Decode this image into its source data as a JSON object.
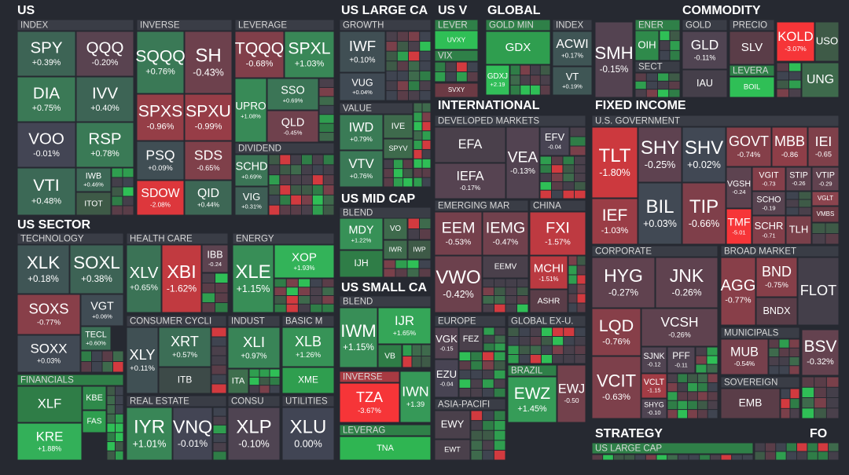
{
  "sections": [
    {
      "title": "US"
    },
    {
      "title": "US SECTOR"
    },
    {
      "title": "US LARGE CA"
    },
    {
      "title": "US MID CAP"
    },
    {
      "title": "US SMALL CA"
    },
    {
      "title": "US V"
    },
    {
      "title": "GLOBAL"
    },
    {
      "title": "COMMODITY"
    },
    {
      "title": "INTERNATIONAL"
    },
    {
      "title": "FIXED INCOME"
    },
    {
      "title": "STRATEGY"
    },
    {
      "title": "FO"
    }
  ],
  "groups": [
    {
      "label": "INDEX"
    },
    {
      "label": "INVERSE"
    },
    {
      "label": "LEVERAGE"
    },
    {
      "label": "DIVIDEND"
    },
    {
      "label": "TECHNOLOGY"
    },
    {
      "label": "HEALTH CARE"
    },
    {
      "label": "ENERGY"
    },
    {
      "label": "CONSUMER CYCLI"
    },
    {
      "label": "INDUST"
    },
    {
      "label": "BASIC M"
    },
    {
      "label": "FINANCIALS"
    },
    {
      "label": "REAL ESTATE"
    },
    {
      "label": "CONSU"
    },
    {
      "label": "UTILITIES"
    },
    {
      "label": "GROWTH"
    },
    {
      "label": "VALUE"
    },
    {
      "label": "BLEND"
    },
    {
      "label": "BLEND"
    },
    {
      "label": "INVERSE"
    },
    {
      "label": "LEVERAG"
    },
    {
      "label": "LEVER"
    },
    {
      "label": "VIX"
    },
    {
      "label": "GOLD MIN"
    },
    {
      "label": "INDEX"
    },
    {
      "label": "ENER"
    },
    {
      "label": "SECT"
    },
    {
      "label": "GOLD"
    },
    {
      "label": "PRECIO"
    },
    {
      "label": "LEVERA"
    },
    {
      "label": "DEVELOPED MARKETS"
    },
    {
      "label": "EMERGING MAR"
    },
    {
      "label": "CHINA"
    },
    {
      "label": "EUROPE"
    },
    {
      "label": "GLOBAL EX-U."
    },
    {
      "label": "BRAZIL"
    },
    {
      "label": "ASIA-PACIFI"
    },
    {
      "label": "U.S. GOVERNMENT"
    },
    {
      "label": "CORPORATE"
    },
    {
      "label": "BROAD MARKET"
    },
    {
      "label": "MUNICIPALS"
    },
    {
      "label": "SOVEREIGN"
    },
    {
      "label": "US LARGE CAP"
    }
  ],
  "tiles": [
    {
      "ticker": "SPY",
      "change": "+0.39%"
    },
    {
      "ticker": "QQQ",
      "change": "-0.20%"
    },
    {
      "ticker": "DIA",
      "change": "+0.75%"
    },
    {
      "ticker": "IVV",
      "change": "+0.40%"
    },
    {
      "ticker": "VOO",
      "change": "-0.01%"
    },
    {
      "ticker": "RSP",
      "change": "+0.78%"
    },
    {
      "ticker": "VTI",
      "change": "+0.48%"
    },
    {
      "ticker": "IWB",
      "change": "+0.46%"
    },
    {
      "ticker": "ITOT",
      "color": "#3e5a47"
    },
    {
      "ticker": "SQQQ",
      "change": "+0.76%"
    },
    {
      "ticker": "SH",
      "change": "-0.43%"
    },
    {
      "ticker": "SPXS",
      "change": "-0.96%"
    },
    {
      "ticker": "SPXU",
      "change": "-0.99%"
    },
    {
      "ticker": "PSQ",
      "change": "+0.09%"
    },
    {
      "ticker": "SDS",
      "change": "-0.65%"
    },
    {
      "ticker": "SDOW",
      "change": "-2.08%"
    },
    {
      "ticker": "QID",
      "change": "+0.44%"
    },
    {
      "ticker": "TQQQ",
      "change": "-0.68%"
    },
    {
      "ticker": "SPXL",
      "change": "+1.03%"
    },
    {
      "ticker": "UPRO",
      "change": "+1.08%"
    },
    {
      "ticker": "SSO",
      "change": "+0.69%"
    },
    {
      "ticker": "QLD",
      "change": "-0.45%"
    },
    {
      "ticker": "SCHD",
      "change": "+0.69%"
    },
    {
      "ticker": "VIG",
      "change": "+0.31%"
    },
    {
      "ticker": "XLK",
      "change": "+0.18%"
    },
    {
      "ticker": "SOXL",
      "change": "+0.38%"
    },
    {
      "ticker": "SOXS",
      "change": "-0.77%"
    },
    {
      "ticker": "VGT",
      "change": "+0.06%"
    },
    {
      "ticker": "TECL",
      "change": "+0.60%"
    },
    {
      "ticker": "SOXX",
      "change": "+0.03%"
    },
    {
      "ticker": "XLV",
      "change": "+0.65%"
    },
    {
      "ticker": "XBI",
      "change": "-1.62%"
    },
    {
      "ticker": "IBB",
      "change": "-0.24"
    },
    {
      "ticker": "XLE",
      "change": "+1.15%"
    },
    {
      "ticker": "XOP",
      "change": "+1.93%"
    },
    {
      "ticker": "XLY",
      "change": "+0.11%"
    },
    {
      "ticker": "XRT",
      "change": "+0.57%"
    },
    {
      "ticker": "ITB",
      "color": "#3d4a48"
    },
    {
      "ticker": "XLI",
      "change": "+0.97%"
    },
    {
      "ticker": "ITA",
      "color": "#3e6e4d"
    },
    {
      "ticker": "XLB",
      "change": "+1.26%"
    },
    {
      "ticker": "XME",
      "color": "#2f9e4f"
    },
    {
      "ticker": "XLF",
      "color": "#2f7d47"
    },
    {
      "ticker": "KBE",
      "color": "#2f8a4b"
    },
    {
      "ticker": "FAS",
      "color": "#2f9e4f"
    },
    {
      "ticker": "KRE",
      "change": "+1.88%"
    },
    {
      "ticker": "IYR",
      "change": "+1.01%"
    },
    {
      "ticker": "VNQ",
      "change": "-0.01%"
    },
    {
      "ticker": "XLP",
      "change": "-0.10%"
    },
    {
      "ticker": "XLU",
      "change": "0.00%"
    },
    {
      "ticker": "IWF",
      "change": "+0.10%"
    },
    {
      "ticker": "VUG",
      "change": "+0.04%"
    },
    {
      "ticker": "IWD",
      "change": "+0.79%"
    },
    {
      "ticker": "IVE",
      "color": "#3e6a4c"
    },
    {
      "ticker": "SPYV",
      "color": "#3e6a4c"
    },
    {
      "ticker": "VTV",
      "change": "+0.76%"
    },
    {
      "ticker": "MDY",
      "change": "+1.22%"
    },
    {
      "ticker": "VO",
      "color": "#3e6a4c"
    },
    {
      "ticker": "IWR",
      "color": "#3e6a4c"
    },
    {
      "ticker": "IWP",
      "color": "#3e5a47"
    },
    {
      "ticker": "IJH",
      "color": "#2f7d47"
    },
    {
      "ticker": "IWM",
      "change": "+1.15%"
    },
    {
      "ticker": "IJR",
      "change": "+1.65%"
    },
    {
      "ticker": "VB",
      "color": "#2f7d47"
    },
    {
      "ticker": "TZA",
      "change": "-3.67%"
    },
    {
      "ticker": "IWN",
      "change": "+1.39"
    },
    {
      "ticker": "TNA",
      "color": "#2fb552"
    },
    {
      "ticker": "UVXY",
      "color": "#2fbf56"
    },
    {
      "ticker": "SVXY",
      "color": "#6b3a44"
    },
    {
      "ticker": "GDX",
      "color": "#2f9e4f"
    },
    {
      "ticker": "GDXJ",
      "change": "+2.19"
    },
    {
      "ticker": "ACWI",
      "change": "+0.17%"
    },
    {
      "ticker": "VT",
      "change": "+0.19%"
    },
    {
      "ticker": "SMH",
      "change": "-0.15%"
    },
    {
      "ticker": "OIH",
      "color": "#2f8a4b"
    },
    {
      "ticker": "GLD",
      "change": "-0.11%"
    },
    {
      "ticker": "IAU",
      "color": "#453f4a"
    },
    {
      "ticker": "SLV",
      "color": "#5a3d48"
    },
    {
      "ticker": "BOIL",
      "color": "#2fbf56"
    },
    {
      "ticker": "KOLD",
      "change": "-3.07%"
    },
    {
      "ticker": "USO",
      "color": "#3e5a47"
    },
    {
      "ticker": "UNG",
      "color": "#3e6a4c"
    },
    {
      "ticker": "EFA",
      "color": "#4a404b"
    },
    {
      "ticker": "IEFA",
      "change": "-0.17%"
    },
    {
      "ticker": "VEA",
      "change": "-0.13%"
    },
    {
      "ticker": "EFV",
      "change": "-0.04"
    },
    {
      "ticker": "EEM",
      "change": "-0.53%"
    },
    {
      "ticker": "IEMG",
      "change": "-0.47%"
    },
    {
      "ticker": "VWO",
      "change": "-0.42%"
    },
    {
      "ticker": "EEMV",
      "color": "#4a404b"
    },
    {
      "ticker": "FXI",
      "change": "-1.57%"
    },
    {
      "ticker": "MCHI",
      "change": "-1.51%"
    },
    {
      "ticker": "ASHR",
      "color": "#5a3d48"
    },
    {
      "ticker": "VGK",
      "change": "-0.15"
    },
    {
      "ticker": "FEZ",
      "color": "#4a404b"
    },
    {
      "ticker": "EZU",
      "change": "-0.04"
    },
    {
      "ticker": "EWZ",
      "change": "+1.45%"
    },
    {
      "ticker": "EWJ",
      "change": "-0.50"
    },
    {
      "ticker": "EWY",
      "color": "#4a404b"
    },
    {
      "ticker": "EWT",
      "color": "#4a404b"
    },
    {
      "ticker": "TLT",
      "change": "-1.80%"
    },
    {
      "ticker": "SHY",
      "change": "-0.25%"
    },
    {
      "ticker": "SHV",
      "change": "+0.02%"
    },
    {
      "ticker": "IEF",
      "change": "-1.03%"
    },
    {
      "ticker": "BIL",
      "change": "+0.03%"
    },
    {
      "ticker": "TIP",
      "change": "-0.66%"
    },
    {
      "ticker": "GOVT",
      "change": "-0.74%"
    },
    {
      "ticker": "MBB",
      "change": "-0.86"
    },
    {
      "ticker": "IEI",
      "change": "-0.65"
    },
    {
      "ticker": "VGSH",
      "change": "-0.24"
    },
    {
      "ticker": "VGIT",
      "change": "-0.73"
    },
    {
      "ticker": "STIP",
      "change": "-0.26"
    },
    {
      "ticker": "VTIP",
      "change": "-0.29"
    },
    {
      "ticker": "SCHO",
      "change": "-0.19"
    },
    {
      "ticker": "VGLT",
      "color": "#8b444e"
    },
    {
      "ticker": "VMBS",
      "color": "#6b3a44"
    },
    {
      "ticker": "TMF",
      "change": "-5.01"
    },
    {
      "ticker": "SCHR",
      "change": "-0.71"
    },
    {
      "ticker": "TLH",
      "color": "#7a404a"
    },
    {
      "ticker": "HYG",
      "change": "-0.27%"
    },
    {
      "ticker": "JNK",
      "change": "-0.26%"
    },
    {
      "ticker": "LQD",
      "change": "-0.76%"
    },
    {
      "ticker": "VCSH",
      "change": "-0.26%"
    },
    {
      "ticker": "VCIT",
      "change": "-0.63%"
    },
    {
      "ticker": "SJNK",
      "change": "-0.12"
    },
    {
      "ticker": "PFF",
      "change": "-0.11"
    },
    {
      "ticker": "VCLT",
      "change": "-1.15"
    },
    {
      "ticker": "SHYG",
      "change": "-0.10"
    },
    {
      "ticker": "AGG",
      "change": "-0.77%"
    },
    {
      "ticker": "BND",
      "change": "-0.75%"
    },
    {
      "ticker": "BNDX",
      "color": "#5a3d48"
    },
    {
      "ticker": "FLOT",
      "color": "#443f4a"
    },
    {
      "ticker": "MUB",
      "change": "-0.54%"
    },
    {
      "ticker": "BSV",
      "change": "-0.32%"
    },
    {
      "ticker": "EMB",
      "color": "#5a3d48"
    }
  ]
}
